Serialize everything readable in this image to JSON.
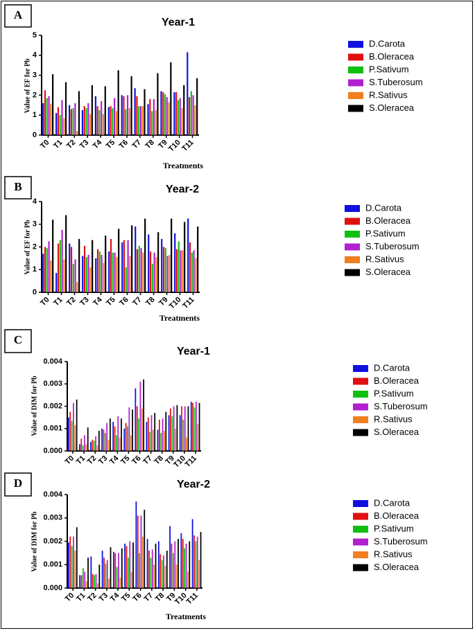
{
  "series_colors": [
    "#1010e0",
    "#e01010",
    "#10c010",
    "#b020d0",
    "#f07f20",
    "#000000"
  ],
  "chart_data": [
    {
      "type": "bar",
      "panel": "A",
      "title": "Year-1",
      "xlabel": "Treatments",
      "ylabel": "Value of EF for Pb",
      "ylim": [
        0,
        5
      ],
      "yticks": [
        "0",
        "1",
        "2",
        "3",
        "4",
        "5"
      ],
      "categories": [
        "T0",
        "T1",
        "T2",
        "T3",
        "T4",
        "T5",
        "T6",
        "T7",
        "T8",
        "T9",
        "T10",
        "T11"
      ],
      "series": [
        {
          "name": "D.Carota",
          "values": [
            1.6,
            1.1,
            1.5,
            1.25,
            1.95,
            1.4,
            2.0,
            2.35,
            1.55,
            2.2,
            2.15,
            4.15
          ]
        },
        {
          "name": "B.Oleracea",
          "values": [
            2.25,
            1.4,
            1.3,
            1.45,
            1.45,
            1.45,
            1.95,
            1.95,
            1.8,
            2.15,
            2.15,
            1.9
          ]
        },
        {
          "name": "P.Sativum",
          "values": [
            1.85,
            1.0,
            1.35,
            1.35,
            1.25,
            1.35,
            1.3,
            1.45,
            1.2,
            2.05,
            1.75,
            2.2
          ]
        },
        {
          "name": "S.Tuberosum",
          "values": [
            1.95,
            1.75,
            1.6,
            1.6,
            1.7,
            1.85,
            2.0,
            1.45,
            1.8,
            1.9,
            1.85,
            2.0
          ]
        },
        {
          "name": "R.Sativus",
          "values": [
            1.55,
            0.85,
            0.2,
            1.05,
            1.05,
            1.2,
            1.35,
            1.45,
            1.25,
            1.65,
            1.35,
            1.5
          ]
        },
        {
          "name": "S.Oleracea",
          "values": [
            3.05,
            2.65,
            2.2,
            2.5,
            2.45,
            3.25,
            2.95,
            2.3,
            3.1,
            3.65,
            2.5,
            2.85
          ]
        }
      ]
    },
    {
      "type": "bar",
      "panel": "B",
      "title": "Year-2",
      "xlabel": "Treatments",
      "ylabel": "Value of EF for Pb",
      "ylim": [
        0,
        4
      ],
      "yticks": [
        "0",
        "1",
        "2",
        "3",
        "4"
      ],
      "categories": [
        "T0",
        "T1",
        "T2",
        "T3",
        "T4",
        "T5",
        "T6",
        "T7",
        "T8",
        "T9",
        "T10",
        "T11"
      ],
      "series": [
        {
          "name": "D.Carota",
          "values": [
            1.7,
            0.85,
            2.15,
            1.6,
            1.5,
            1.8,
            2.2,
            2.9,
            2.55,
            2.35,
            2.6,
            3.25
          ]
        },
        {
          "name": "B.Oleracea",
          "values": [
            2.0,
            2.15,
            2.0,
            2.05,
            1.9,
            2.35,
            2.3,
            1.9,
            1.8,
            2.0,
            1.9,
            2.2
          ]
        },
        {
          "name": "P.Sativum",
          "values": [
            1.95,
            2.3,
            1.25,
            1.55,
            1.8,
            1.75,
            1.1,
            2.05,
            1.25,
            1.95,
            2.25,
            1.75
          ]
        },
        {
          "name": "S.Tuberosum",
          "values": [
            2.25,
            2.75,
            1.45,
            1.65,
            1.65,
            1.75,
            2.3,
            1.95,
            1.75,
            1.6,
            1.85,
            1.85
          ]
        },
        {
          "name": "R.Sativus",
          "values": [
            1.4,
            1.45,
            0.45,
            1.1,
            1.3,
            1.55,
            1.6,
            1.75,
            1.55,
            1.65,
            1.85,
            1.5
          ]
        },
        {
          "name": "S.Oleracea",
          "values": [
            3.2,
            3.4,
            2.35,
            2.3,
            2.5,
            2.8,
            2.95,
            3.25,
            2.65,
            3.25,
            3.1,
            2.9
          ]
        }
      ]
    },
    {
      "type": "bar",
      "panel": "C",
      "title": "Year-1",
      "xlabel": "",
      "ylabel": "Value of DIM for Pb",
      "ylim": [
        0,
        0.004
      ],
      "yticks": [
        "0.000",
        "0.001",
        "0.002",
        "0.003",
        "0.004"
      ],
      "categories": [
        "T0",
        "T1",
        "T2",
        "T3",
        "T4",
        "T5",
        "T6",
        "T7",
        "T8",
        "T9",
        "T10",
        "T11"
      ],
      "series": [
        {
          "name": "D.Carota",
          "values": [
            0.0015,
            0.0003,
            0.0004,
            0.001,
            0.0013,
            0.001,
            0.0028,
            0.0013,
            0.00095,
            0.0016,
            0.0016,
            0.0022
          ]
        },
        {
          "name": "B.Oleracea",
          "values": [
            0.00175,
            0.00055,
            0.0005,
            0.00095,
            0.0011,
            0.00125,
            0.002,
            0.0015,
            0.0014,
            0.0019,
            0.002,
            0.00215
          ]
        },
        {
          "name": "P.Sativum",
          "values": [
            0.00135,
            0.00025,
            0.00045,
            0.0008,
            0.0007,
            0.0011,
            0.00145,
            0.00085,
            0.0008,
            0.00155,
            0.0014,
            0.00195
          ]
        },
        {
          "name": "S.Tuberosum",
          "values": [
            0.00215,
            0.0007,
            0.00065,
            0.00125,
            0.00155,
            0.00195,
            0.0031,
            0.0016,
            0.00145,
            0.002,
            0.002,
            0.0022
          ]
        },
        {
          "name": "R.Sativus",
          "values": [
            0.00115,
            0.0003,
            0.00025,
            0.0005,
            0.0006,
            0.0007,
            0.0019,
            0.00095,
            0.0009,
            0.001,
            0.0006,
            0.0012
          ]
        },
        {
          "name": "S.Oleracea",
          "values": [
            0.0023,
            0.00105,
            0.0009,
            0.00145,
            0.00145,
            0.00185,
            0.0032,
            0.0017,
            0.00175,
            0.00205,
            0.002,
            0.00215
          ]
        }
      ]
    },
    {
      "type": "bar",
      "panel": "D",
      "title": "Year-2",
      "xlabel": "Treatments",
      "ylabel": "Value of DIM for Pb",
      "ylim": [
        0,
        0.004
      ],
      "yticks": [
        "0.000",
        "0.001",
        "0.002",
        "0.003",
        "0.004"
      ],
      "categories": [
        "T0",
        "T1",
        "T2",
        "T3",
        "T4",
        "T5",
        "T6",
        "T7",
        "T8",
        "T9",
        "T10",
        "T11"
      ],
      "series": [
        {
          "name": "D.Carota",
          "values": [
            0.00195,
            0.00055,
            0.00135,
            0.0016,
            0.00155,
            0.0019,
            0.0037,
            0.0021,
            0.002,
            0.00265,
            0.00235,
            0.00295
          ]
        },
        {
          "name": "B.Oleracea",
          "values": [
            0.0022,
            0.00055,
            0.0006,
            0.0013,
            0.0015,
            0.0018,
            0.0031,
            0.0016,
            0.00145,
            0.0019,
            0.0021,
            0.00225
          ]
        },
        {
          "name": "P.Sativum",
          "values": [
            0.0018,
            0.00085,
            0.00055,
            0.00105,
            0.0009,
            0.0013,
            0.0015,
            0.0013,
            0.0012,
            0.0015,
            0.0017,
            0.002
          ]
        },
        {
          "name": "S.Tuberosum",
          "values": [
            0.0022,
            0.0007,
            0.0006,
            0.0012,
            0.0015,
            0.002,
            0.0031,
            0.00165,
            0.0014,
            0.002,
            0.0019,
            0.0022
          ]
        },
        {
          "name": "R.Sativus",
          "values": [
            0.0016,
            0.0003,
            0.0002,
            0.0004,
            0.00045,
            0.0007,
            0.0022,
            0.001,
            0.00095,
            0.001,
            0.0007,
            0.0012
          ]
        },
        {
          "name": "S.Oleracea",
          "values": [
            0.0026,
            0.0013,
            0.001,
            0.00175,
            0.0017,
            0.00195,
            0.00335,
            0.0019,
            0.0016,
            0.0021,
            0.002,
            0.0024
          ]
        }
      ]
    }
  ]
}
